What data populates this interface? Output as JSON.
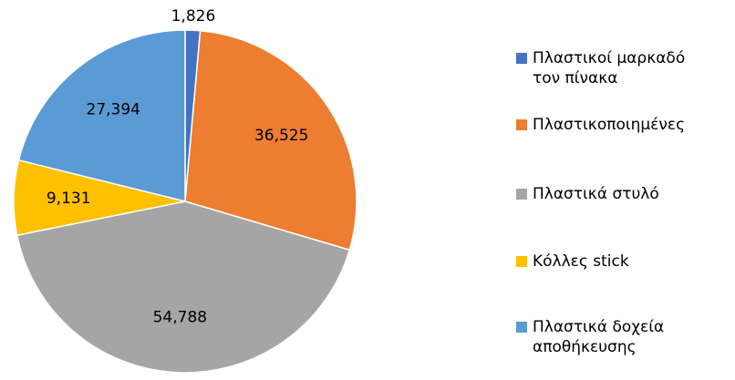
{
  "chart_data": {
    "type": "pie",
    "categories": [
      "Πλαστικοί μαρκαδό\nτον πίνακα",
      "Πλαστικοποιημένες",
      "Πλαστικά στυλό",
      "Κόλλες stick",
      "Πλαστικά δοχεία\nαποθήκευσης"
    ],
    "values": [
      1826,
      36525,
      54788,
      9131,
      27394
    ],
    "value_labels": [
      "1,826",
      "36,525",
      "54,788",
      "9,131",
      "27,394"
    ],
    "colors": [
      "#4472c4",
      "#ed7d31",
      "#a5a5a5",
      "#ffc000",
      "#5b9bd5"
    ],
    "legend": "right"
  }
}
